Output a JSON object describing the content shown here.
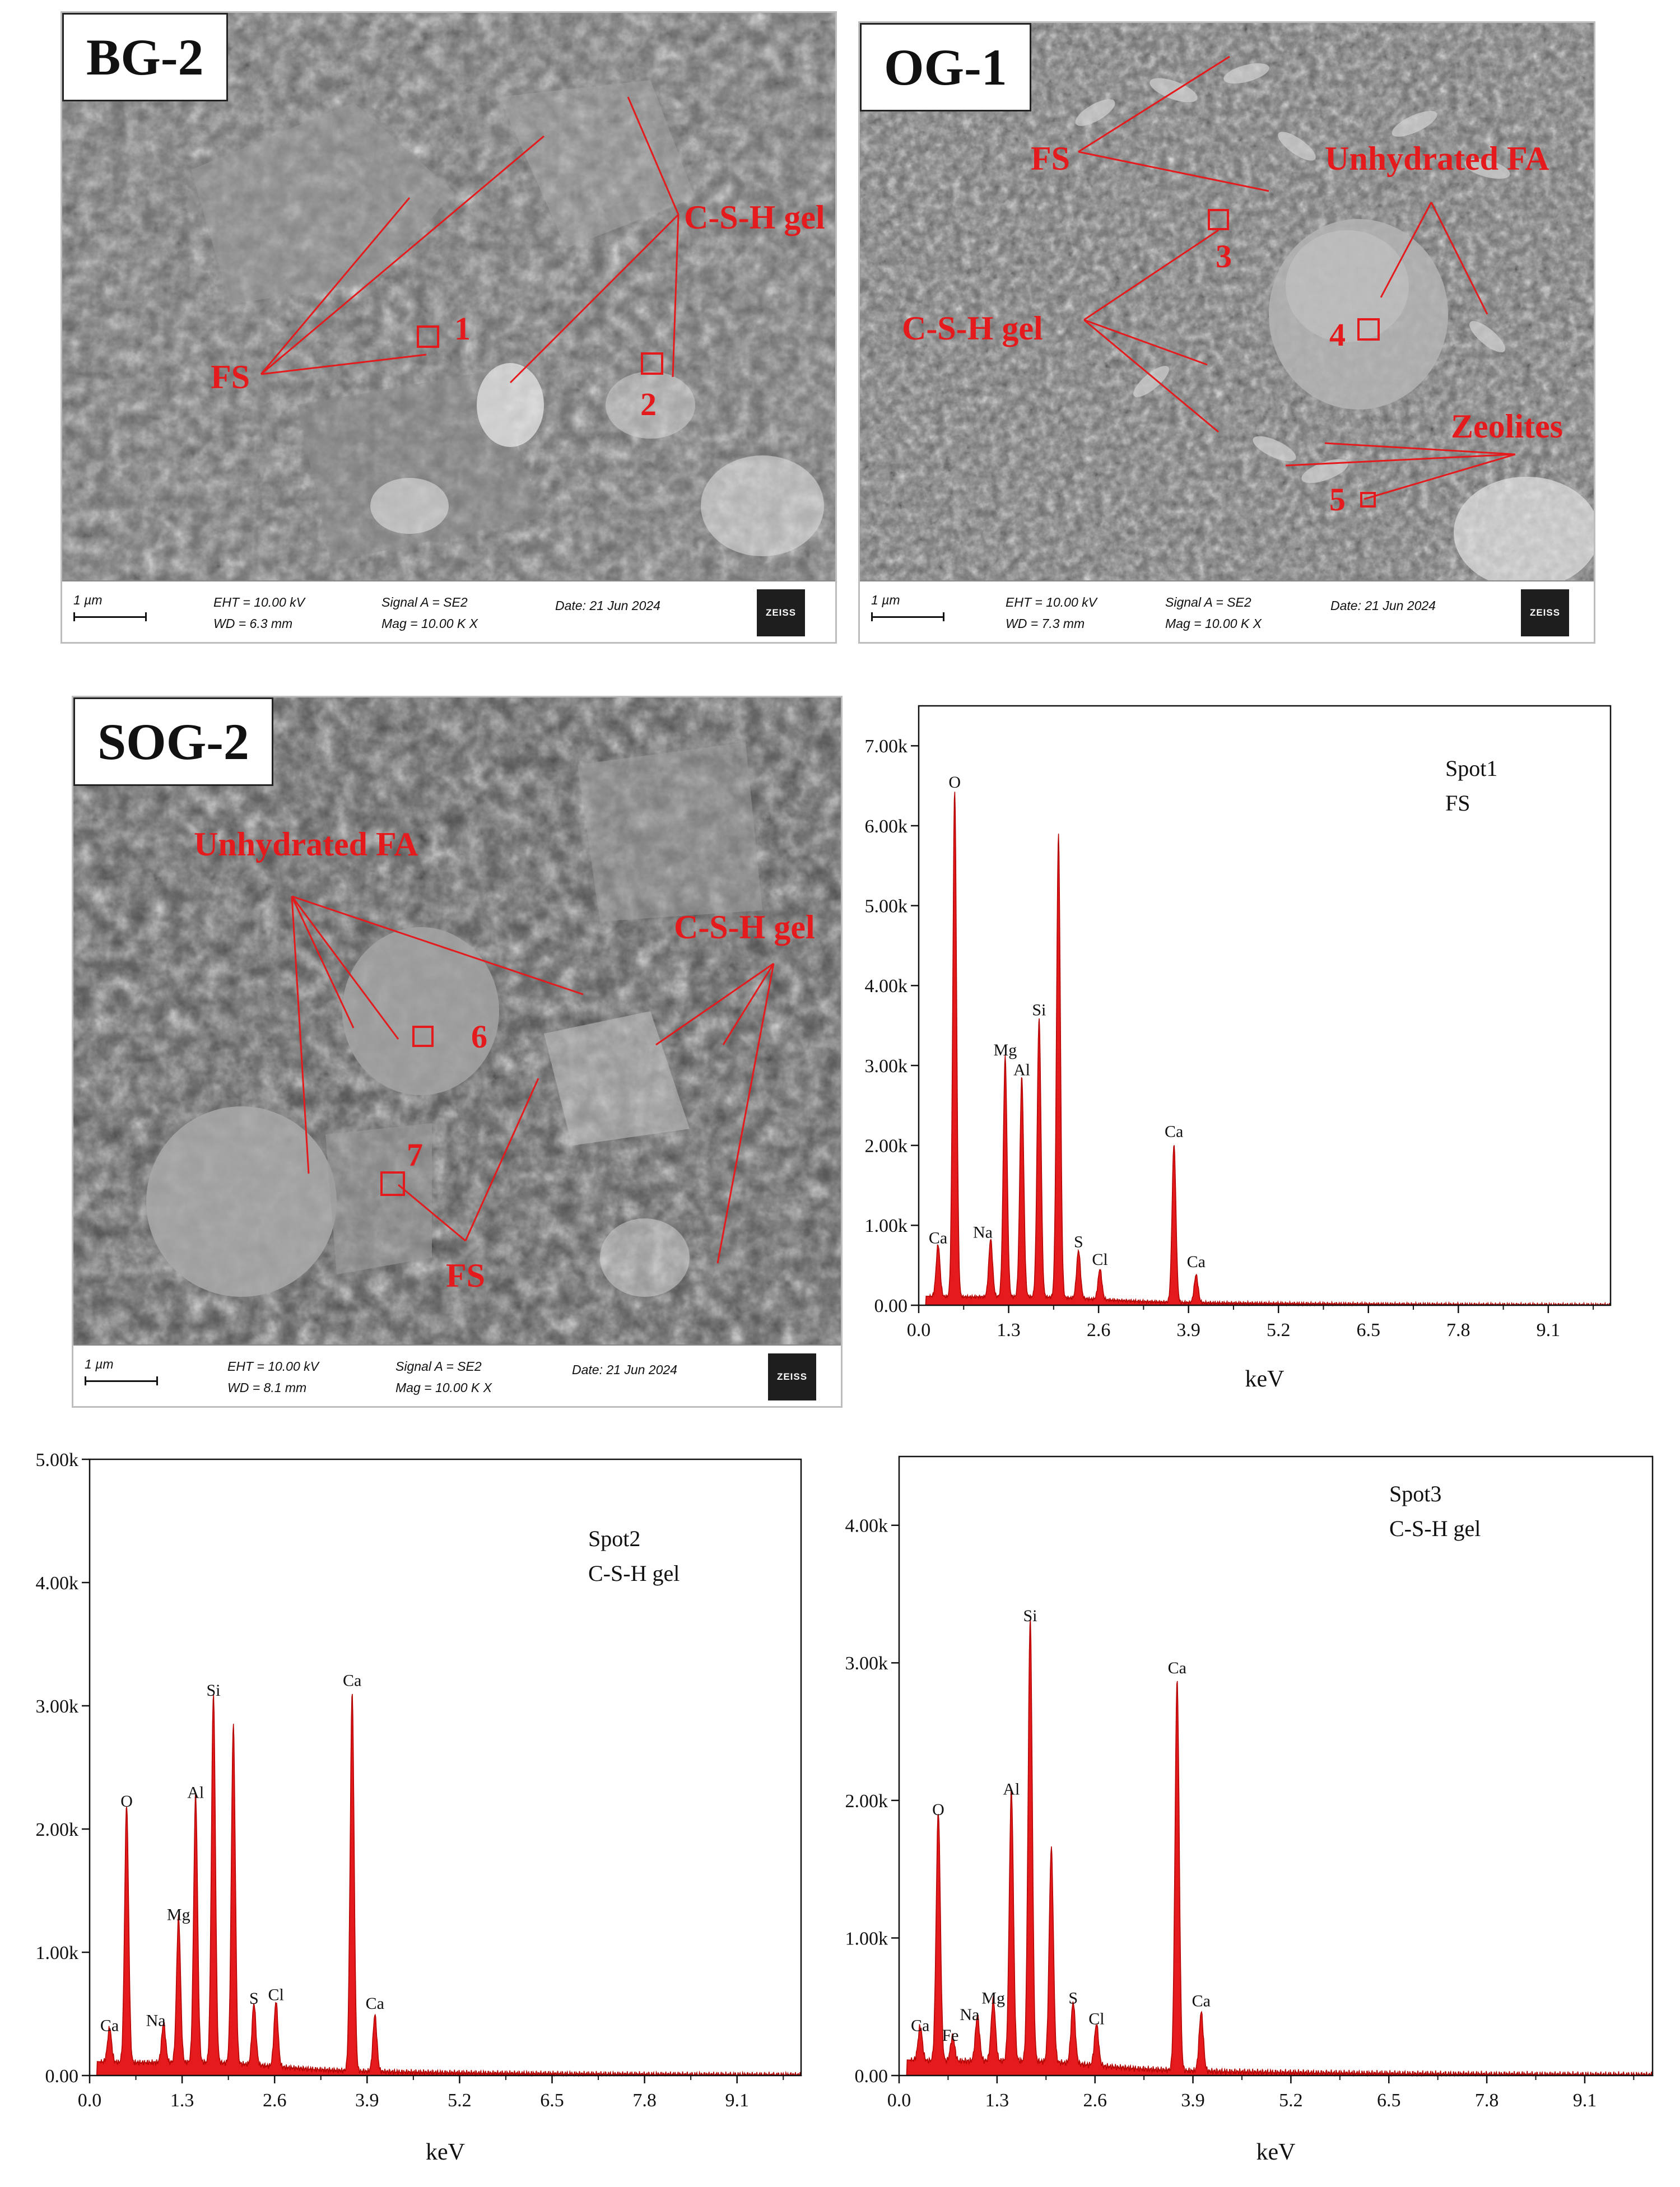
{
  "sem_panels": [
    {
      "id": "bg2",
      "sample": "BG-2",
      "annotations": [
        "FS",
        "C-S-H gel"
      ],
      "spots": [
        "1",
        "2"
      ],
      "footer": {
        "scale": "1 µm",
        "eht": "EHT = 10.00 kV",
        "wd": "WD =  6.3 mm",
        "signal": "Signal A = SE2",
        "mag": "Mag =   10.00 K X",
        "date": "Date: 21 Jun 2024",
        "brand": "ZEISS"
      }
    },
    {
      "id": "og1",
      "sample": "OG-1",
      "annotations": [
        "FS",
        "Unhydrated FA",
        "C-S-H gel",
        "Zeolites"
      ],
      "spots": [
        "3",
        "4",
        "5"
      ],
      "footer": {
        "scale": "1 µm",
        "eht": "EHT = 10.00 kV",
        "wd": "WD =  7.3 mm",
        "signal": "Signal A = SE2",
        "mag": "Mag =   10.00 K X",
        "date": "Date: 21 Jun 2024",
        "brand": "ZEISS"
      }
    },
    {
      "id": "sog2",
      "sample": "SOG-2",
      "annotations": [
        "Unhydrated FA",
        "C-S-H gel",
        "FS"
      ],
      "spots": [
        "6",
        "7"
      ],
      "footer": {
        "scale": "1 µm",
        "eht": "EHT = 10.00 kV",
        "wd": "WD =  8.1 mm",
        "signal": "Signal A = SE2",
        "mag": "Mag =   10.00 K X",
        "date": "Date: 21 Jun 2024",
        "brand": "ZEISS"
      }
    }
  ],
  "chart_data": [
    {
      "type": "area",
      "title": "Spot1",
      "subtitle": "FS",
      "xlabel": "keV",
      "ylabel": "",
      "xlim": [
        0,
        10
      ],
      "ylim": [
        0,
        7500
      ],
      "xticks": [
        "0.0",
        "1.3",
        "2.6",
        "3.9",
        "5.2",
        "6.5",
        "7.8",
        "9.1"
      ],
      "xtick_values": [
        0,
        1.3,
        2.6,
        3.9,
        5.2,
        6.5,
        7.8,
        9.1
      ],
      "yticks": [
        "0.00",
        "1.00k",
        "2.00k",
        "3.00k",
        "4.00k",
        "5.00k",
        "6.00k",
        "7.00k"
      ],
      "ytick_values": [
        0,
        1000,
        2000,
        3000,
        4000,
        5000,
        6000,
        7000
      ],
      "fill_color": "#e41a1c",
      "peaks": [
        {
          "label": "Ca",
          "x": 0.28,
          "y": 650
        },
        {
          "label": "O",
          "x": 0.52,
          "y": 6350
        },
        {
          "label": "Na",
          "x": 1.04,
          "y": 720
        },
        {
          "label": "Mg",
          "x": 1.25,
          "y": 3000
        },
        {
          "label": "Al",
          "x": 1.49,
          "y": 2750
        },
        {
          "label": "Si",
          "x": 1.74,
          "y": 3500
        },
        {
          "label": "",
          "x": 2.02,
          "y": 5800
        },
        {
          "label": "S",
          "x": 2.31,
          "y": 600
        },
        {
          "label": "Cl",
          "x": 2.62,
          "y": 380
        },
        {
          "label": "Ca",
          "x": 3.69,
          "y": 1980
        },
        {
          "label": "Ca",
          "x": 4.01,
          "y": 350
        }
      ]
    },
    {
      "type": "area",
      "title": "Spot2",
      "subtitle": "C-S-H gel",
      "xlabel": "keV",
      "ylabel": "",
      "xlim": [
        0,
        10
      ],
      "ylim": [
        0,
        5000
      ],
      "xticks": [
        "0.0",
        "1.3",
        "2.6",
        "3.9",
        "5.2",
        "6.5",
        "7.8",
        "9.1"
      ],
      "xtick_values": [
        0,
        1.3,
        2.6,
        3.9,
        5.2,
        6.5,
        7.8,
        9.1
      ],
      "yticks": [
        "0.00",
        "1.00k",
        "2.00k",
        "3.00k",
        "4.00k",
        "5.00k"
      ],
      "ytick_values": [
        0,
        1000,
        2000,
        3000,
        4000,
        5000
      ],
      "fill_color": "#e41a1c",
      "peaks": [
        {
          "label": "Ca",
          "x": 0.28,
          "y": 280
        },
        {
          "label": "O",
          "x": 0.52,
          "y": 2100
        },
        {
          "label": "Na",
          "x": 1.04,
          "y": 320
        },
        {
          "label": "Mg",
          "x": 1.25,
          "y": 1180
        },
        {
          "label": "Al",
          "x": 1.49,
          "y": 2170
        },
        {
          "label": "Si",
          "x": 1.74,
          "y": 3000
        },
        {
          "label": "",
          "x": 2.02,
          "y": 2750
        },
        {
          "label": "S",
          "x": 2.31,
          "y": 500
        },
        {
          "label": "Cl",
          "x": 2.62,
          "y": 530
        },
        {
          "label": "Ca",
          "x": 3.69,
          "y": 3080
        },
        {
          "label": "Ca",
          "x": 4.01,
          "y": 460
        }
      ]
    },
    {
      "type": "area",
      "title": "Spot3",
      "subtitle": "C-S-H gel",
      "xlabel": "keV",
      "ylabel": "",
      "xlim": [
        0,
        10
      ],
      "ylim": [
        0,
        4500
      ],
      "xticks": [
        "0.0",
        "1.3",
        "2.6",
        "3.9",
        "5.2",
        "6.5",
        "7.8",
        "9.1"
      ],
      "xtick_values": [
        0,
        1.3,
        2.6,
        3.9,
        5.2,
        6.5,
        7.8,
        9.1
      ],
      "yticks": [
        "0.00",
        "1.00k",
        "2.00k",
        "3.00k",
        "4.00k"
      ],
      "ytick_values": [
        0,
        1000,
        2000,
        3000,
        4000
      ],
      "fill_color": "#e41a1c",
      "peaks": [
        {
          "label": "Ca",
          "x": 0.28,
          "y": 250
        },
        {
          "label": "O",
          "x": 0.52,
          "y": 1820
        },
        {
          "label": "Fe",
          "x": 0.71,
          "y": 180
        },
        {
          "label": "Na",
          "x": 1.04,
          "y": 330
        },
        {
          "label": "Mg",
          "x": 1.25,
          "y": 450
        },
        {
          "label": "Al",
          "x": 1.49,
          "y": 1970
        },
        {
          "label": "Si",
          "x": 1.74,
          "y": 3230
        },
        {
          "label": "",
          "x": 2.02,
          "y": 1560
        },
        {
          "label": "S",
          "x": 2.31,
          "y": 450
        },
        {
          "label": "Cl",
          "x": 2.62,
          "y": 300
        },
        {
          "label": "Ca",
          "x": 3.69,
          "y": 2850
        },
        {
          "label": "Ca",
          "x": 4.01,
          "y": 430
        }
      ]
    }
  ]
}
